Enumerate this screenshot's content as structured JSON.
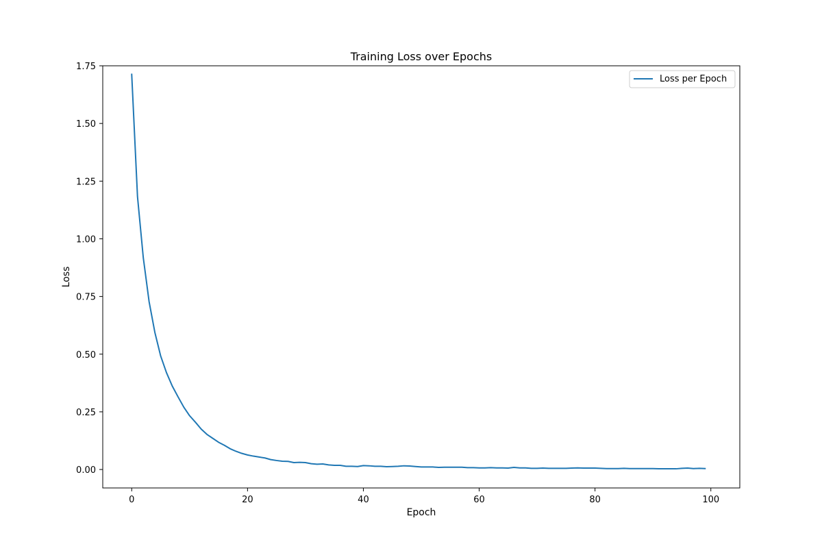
{
  "chart_data": {
    "type": "line",
    "title": "Training Loss over Epochs",
    "xlabel": "Epoch",
    "ylabel": "Loss",
    "xlim": [
      -5,
      105
    ],
    "ylim": [
      -0.08,
      1.75
    ],
    "x_ticks": [
      0,
      20,
      40,
      60,
      80,
      100
    ],
    "x_tick_labels": [
      "0",
      "20",
      "40",
      "60",
      "80",
      "100"
    ],
    "y_ticks": [
      0.0,
      0.25,
      0.5,
      0.75,
      1.0,
      1.25,
      1.5,
      1.75
    ],
    "y_tick_labels": [
      "0.00",
      "0.25",
      "0.50",
      "0.75",
      "1.00",
      "1.25",
      "1.50",
      "1.75"
    ],
    "grid": false,
    "legend": {
      "placement": "top-right"
    },
    "series": [
      {
        "name": "Loss per Epoch",
        "color": "#1f77b4",
        "x": [
          0,
          1,
          2,
          3,
          4,
          5,
          6,
          7,
          8,
          9,
          10,
          11,
          12,
          13,
          14,
          15,
          16,
          17,
          18,
          19,
          20,
          21,
          22,
          23,
          24,
          25,
          26,
          27,
          28,
          29,
          30,
          31,
          32,
          33,
          34,
          35,
          36,
          37,
          38,
          39,
          40,
          41,
          42,
          43,
          44,
          45,
          46,
          47,
          48,
          49,
          50,
          51,
          52,
          53,
          54,
          55,
          56,
          57,
          58,
          59,
          60,
          61,
          62,
          63,
          64,
          65,
          66,
          67,
          68,
          69,
          70,
          71,
          72,
          73,
          74,
          75,
          76,
          77,
          78,
          79,
          80,
          81,
          82,
          83,
          84,
          85,
          86,
          87,
          88,
          89,
          90,
          91,
          92,
          93,
          94,
          95,
          96,
          97,
          98,
          99
        ],
        "values": [
          1.713,
          1.183,
          0.918,
          0.728,
          0.594,
          0.492,
          0.42,
          0.362,
          0.315,
          0.27,
          0.233,
          0.205,
          0.175,
          0.152,
          0.135,
          0.118,
          0.105,
          0.09,
          0.079,
          0.07,
          0.063,
          0.058,
          0.054,
          0.05,
          0.043,
          0.039,
          0.036,
          0.035,
          0.03,
          0.031,
          0.03,
          0.025,
          0.023,
          0.024,
          0.02,
          0.018,
          0.018,
          0.014,
          0.014,
          0.013,
          0.017,
          0.016,
          0.014,
          0.014,
          0.012,
          0.013,
          0.014,
          0.016,
          0.015,
          0.013,
          0.011,
          0.011,
          0.011,
          0.009,
          0.01,
          0.01,
          0.01,
          0.01,
          0.008,
          0.008,
          0.007,
          0.007,
          0.008,
          0.007,
          0.007,
          0.006,
          0.009,
          0.007,
          0.007,
          0.005,
          0.005,
          0.006,
          0.005,
          0.005,
          0.005,
          0.005,
          0.006,
          0.007,
          0.006,
          0.006,
          0.006,
          0.005,
          0.004,
          0.004,
          0.004,
          0.005,
          0.004,
          0.004,
          0.004,
          0.004,
          0.004,
          0.003,
          0.003,
          0.003,
          0.003,
          0.005,
          0.006,
          0.004,
          0.005,
          0.004
        ]
      }
    ]
  }
}
